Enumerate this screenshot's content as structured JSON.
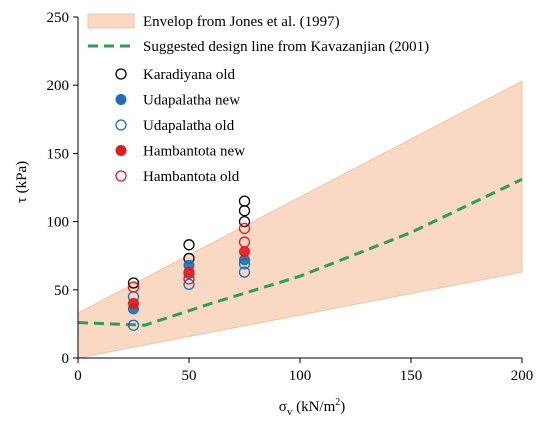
{
  "chart_data": {
    "type": "scatter",
    "title": "",
    "xlabel": "σv (kN/m²)",
    "ylabel": "τ (kPa)",
    "xlim": [
      0,
      200
    ],
    "ylim": [
      0,
      250
    ],
    "xticks": [
      0,
      50,
      100,
      150,
      200
    ],
    "yticks": [
      0,
      50,
      100,
      150,
      200,
      250
    ],
    "legend_position": "top-left",
    "envelope": {
      "name": "Envelop from Jones et al. (1997)",
      "color": "#f9d9c4",
      "upper": [
        [
          0,
          33
        ],
        [
          200,
          203
        ]
      ],
      "lower": [
        [
          0,
          0
        ],
        [
          200,
          63
        ]
      ]
    },
    "design_line": {
      "name": "Suggested design line from Kavazanjian (2001)",
      "color": "#2e9e55",
      "points": [
        [
          0,
          26
        ],
        [
          15,
          25
        ],
        [
          30,
          24
        ],
        [
          60,
          40
        ],
        [
          100,
          60
        ],
        [
          150,
          92
        ],
        [
          200,
          131
        ]
      ]
    },
    "series": [
      {
        "name": "Karadiyana old",
        "marker": "open",
        "color": "#000000",
        "points": [
          [
            25,
            55
          ],
          [
            50,
            83
          ],
          [
            50,
            73
          ],
          [
            75,
            115
          ],
          [
            75,
            108
          ],
          [
            75,
            100
          ]
        ]
      },
      {
        "name": "Udapalatha new",
        "marker": "filled",
        "color": "#1a6fb5",
        "points": [
          [
            25,
            36
          ],
          [
            50,
            68
          ],
          [
            75,
            72
          ]
        ]
      },
      {
        "name": "Udapalatha old",
        "marker": "open",
        "color": "#1a6fb5",
        "points": [
          [
            25,
            24
          ],
          [
            25,
            45
          ],
          [
            50,
            54
          ],
          [
            50,
            62
          ],
          [
            75,
            63
          ],
          [
            75,
            69
          ]
        ]
      },
      {
        "name": "Hambantota new",
        "marker": "filled",
        "color": "#e31a1c",
        "points": [
          [
            25,
            40
          ],
          [
            50,
            63
          ],
          [
            75,
            78
          ]
        ]
      },
      {
        "name": "Hambantota old",
        "marker": "open",
        "color": "#e31a1c",
        "points": [
          [
            25,
            52
          ],
          [
            50,
            58
          ],
          [
            75,
            85
          ],
          [
            75,
            95
          ]
        ]
      }
    ]
  }
}
